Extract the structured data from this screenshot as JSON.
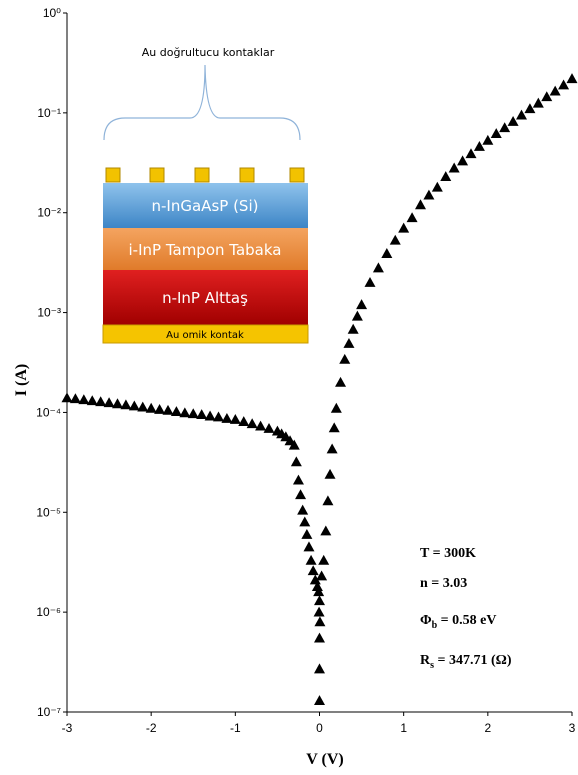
{
  "chart_data": {
    "type": "scatter",
    "marker": "triangle",
    "color": "#000000",
    "log_y": true,
    "xlabel": "V (V)",
    "ylabel": "I (A)",
    "xlim": [
      -3,
      3
    ],
    "ylim": [
      1e-07,
      1
    ],
    "xticks": [
      -3,
      -2,
      -1,
      0,
      1,
      2,
      3
    ],
    "yticks": [
      {
        "value": 1e-07,
        "label": "10⁻⁷"
      },
      {
        "value": 1e-06,
        "label": "10⁻⁶"
      },
      {
        "value": 1e-05,
        "label": "10⁻⁵"
      },
      {
        "value": 0.0001,
        "label": "10⁻⁴"
      },
      {
        "value": 0.001,
        "label": "10⁻³"
      },
      {
        "value": 0.01,
        "label": "10⁻²"
      },
      {
        "value": 0.1,
        "label": "10⁻¹"
      },
      {
        "value": 1,
        "label": "10⁰"
      }
    ],
    "x": [
      -3.0,
      -2.9,
      -2.8,
      -2.7,
      -2.6,
      -2.5,
      -2.4,
      -2.3,
      -2.2,
      -2.1,
      -2.0,
      -1.9,
      -1.8,
      -1.7,
      -1.6,
      -1.5,
      -1.4,
      -1.3,
      -1.2,
      -1.1,
      -1.0,
      -0.9,
      -0.8,
      -0.7,
      -0.6,
      -0.5,
      -0.45,
      -0.4,
      -0.35,
      -0.3,
      -0.275,
      -0.25,
      -0.225,
      -0.2,
      -0.175,
      -0.15,
      -0.125,
      -0.1,
      -0.075,
      -0.05,
      -0.025,
      -0.01,
      0,
      -0.005,
      0.005,
      0,
      0,
      0,
      0.025,
      0.05,
      0.075,
      0.1,
      0.125,
      0.15,
      0.175,
      0.2,
      0.25,
      0.3,
      0.35,
      0.4,
      0.45,
      0.5,
      0.6,
      0.7,
      0.8,
      0.9,
      1.0,
      1.1,
      1.2,
      1.3,
      1.4,
      1.5,
      1.6,
      1.7,
      1.8,
      1.9,
      2.0,
      2.1,
      2.2,
      2.3,
      2.4,
      2.5,
      2.6,
      2.7,
      2.8,
      2.9,
      3.0
    ],
    "values": [
      0.00014,
      0.000137,
      0.000134,
      0.000131,
      0.000128,
      0.000125,
      0.000122,
      0.000119,
      0.000116,
      0.000113,
      0.00011,
      0.000107,
      0.000105,
      0.000102,
      9.9e-05,
      9.7e-05,
      9.5e-05,
      9.2e-05,
      9e-05,
      8.7e-05,
      8.5e-05,
      8.1e-05,
      7.7e-05,
      7.3e-05,
      6.9e-05,
      6.5e-05,
      6.1e-05,
      5.7e-05,
      5.2e-05,
      4.7e-05,
      3.2e-05,
      2.1e-05,
      1.5e-05,
      1.05e-05,
      8e-06,
      6e-06,
      4.5e-06,
      3.3e-06,
      2.6e-06,
      2.1e-06,
      1.8e-06,
      1.6e-06,
      1.3e-06,
      1e-06,
      8e-07,
      5.5e-07,
      2.7e-07,
      1.3e-07,
      2.3e-06,
      3.3e-06,
      6.5e-06,
      1.3e-05,
      2.4e-05,
      4.3e-05,
      7e-05,
      0.00011,
      0.0002,
      0.00034,
      0.00049,
      0.00068,
      0.00092,
      0.0012,
      0.002,
      0.0028,
      0.0039,
      0.0053,
      0.007,
      0.0089,
      0.012,
      0.015,
      0.018,
      0.023,
      0.028,
      0.033,
      0.039,
      0.046,
      0.053,
      0.062,
      0.071,
      0.082,
      0.095,
      0.11,
      0.125,
      0.145,
      0.165,
      0.19,
      0.22
    ],
    "inset": {
      "contacts_label": "Au doğrultucu kontaklar",
      "layers": [
        "n-InGaAsP (Si)",
        "i-InP Tampon Tabaka",
        "n-InP Alttaş",
        "Au omik kontak"
      ]
    },
    "parameters": {
      "temperature": "T = 300K",
      "ideality": "n = 3.03",
      "barrier": {
        "symbol": "Φ",
        "subscript": "b",
        "text": " = 0.58 eV"
      },
      "resistance": {
        "symbol": "R",
        "subscript": "s",
        "text": " = 347.71 (Ω)"
      }
    }
  }
}
